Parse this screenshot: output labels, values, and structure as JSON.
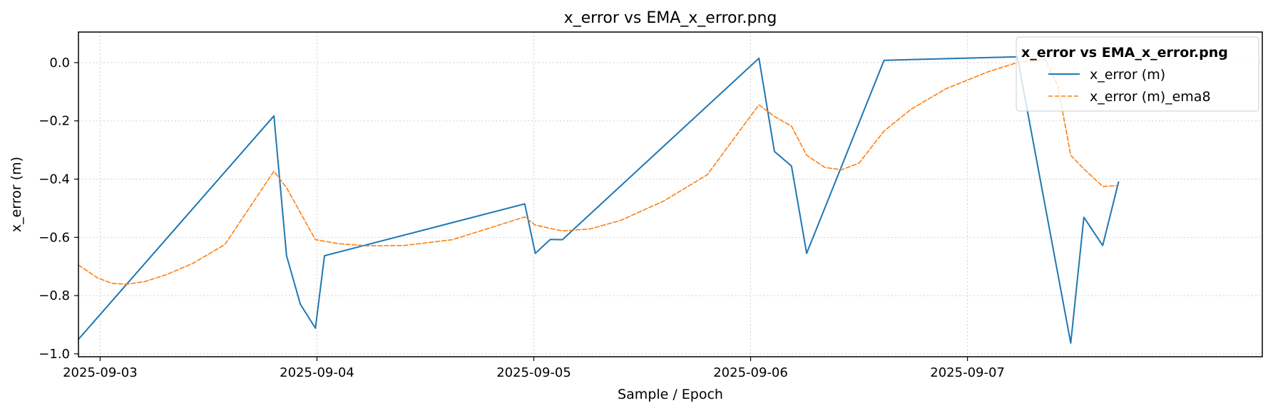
{
  "chart_data": {
    "type": "line",
    "title": "x_error vs EMA_x_error.png",
    "xlabel": "Sample / Epoch",
    "ylabel": "x_error (m)",
    "xlim": [
      "2025-09-02T21:36",
      "2025-09-08T08:38"
    ],
    "ylim": [
      -1.01,
      0.105
    ],
    "x_ticks": [
      "2025-09-03",
      "2025-09-04",
      "2025-09-05",
      "2025-09-06",
      "2025-09-07"
    ],
    "y_ticks": [
      0.0,
      -0.2,
      -0.4,
      -0.6,
      -0.8,
      -1.0
    ],
    "y_tick_labels": [
      "0.0",
      "−0.2",
      "−0.4",
      "−0.6",
      "−0.8",
      "−1.0"
    ],
    "grid": true,
    "legend": {
      "title": "x_error vs EMA_x_error.png",
      "placement": "top-right"
    },
    "series": [
      {
        "name": "x_error (m)",
        "color": "#1f77b4",
        "style": "solid",
        "points": [
          [
            "2025-09-02T21:36",
            -0.95
          ],
          [
            "2025-09-03T19:14",
            -0.183
          ],
          [
            "2025-09-03T20:38",
            -0.663
          ],
          [
            "2025-09-03T22:10",
            -0.83
          ],
          [
            "2025-09-03T23:50",
            -0.912
          ],
          [
            "2025-09-04T00:50",
            -0.663
          ],
          [
            "2025-09-04T23:00",
            -0.485
          ],
          [
            "2025-09-05T00:10",
            -0.655
          ],
          [
            "2025-09-05T01:50",
            -0.607
          ],
          [
            "2025-09-05T03:10",
            -0.608
          ],
          [
            "2025-09-06T00:55",
            0.015
          ],
          [
            "2025-09-06T02:38",
            -0.305
          ],
          [
            "2025-09-06T04:31",
            -0.355
          ],
          [
            "2025-09-06T06:12",
            -0.655
          ],
          [
            "2025-09-06T14:46",
            0.008
          ],
          [
            "2025-09-07T05:31",
            0.02
          ],
          [
            "2025-09-07T11:26",
            -0.963
          ],
          [
            "2025-09-07T12:53",
            -0.531
          ],
          [
            "2025-09-07T14:58",
            -0.628
          ],
          [
            "2025-09-07T16:43",
            -0.41
          ]
        ]
      },
      {
        "name": "x_error (m)_ema8",
        "color": "#ff7f0e",
        "style": "dashed",
        "points": [
          [
            "2025-09-02T21:36",
            -0.695
          ],
          [
            "2025-09-02T23:46",
            -0.74
          ],
          [
            "2025-09-03T01:19",
            -0.758
          ],
          [
            "2025-09-03T02:55",
            -0.761
          ],
          [
            "2025-09-03T04:55",
            -0.752
          ],
          [
            "2025-09-03T07:20",
            -0.728
          ],
          [
            "2025-09-03T10:14",
            -0.69
          ],
          [
            "2025-09-03T13:48",
            -0.625
          ],
          [
            "2025-09-03T19:14",
            -0.373
          ],
          [
            "2025-09-03T20:38",
            -0.43
          ],
          [
            "2025-09-03T23:50",
            -0.608
          ],
          [
            "2025-09-04T02:24",
            -0.622
          ],
          [
            "2025-09-04T05:31",
            -0.629
          ],
          [
            "2025-09-04T09:36",
            -0.628
          ],
          [
            "2025-09-04T15:00",
            -0.608
          ],
          [
            "2025-09-04T23:00",
            -0.53
          ],
          [
            "2025-09-05T00:10",
            -0.558
          ],
          [
            "2025-09-05T03:10",
            -0.578
          ],
          [
            "2025-09-05T06:14",
            -0.571
          ],
          [
            "2025-09-05T09:36",
            -0.542
          ],
          [
            "2025-09-05T14:24",
            -0.475
          ],
          [
            "2025-09-05T19:12",
            -0.385
          ],
          [
            "2025-09-06T00:55",
            -0.145
          ],
          [
            "2025-09-06T02:38",
            -0.185
          ],
          [
            "2025-09-06T04:31",
            -0.218
          ],
          [
            "2025-09-06T06:12",
            -0.318
          ],
          [
            "2025-09-06T08:14",
            -0.36
          ],
          [
            "2025-09-06T10:05",
            -0.368
          ],
          [
            "2025-09-06T12:00",
            -0.345
          ],
          [
            "2025-09-06T14:46",
            -0.235
          ],
          [
            "2025-09-06T17:46",
            -0.16
          ],
          [
            "2025-09-06T21:36",
            -0.09
          ],
          [
            "2025-09-07T02:24",
            -0.03
          ],
          [
            "2025-09-07T05:31",
            0.0
          ],
          [
            "2025-09-07T08:38",
            0.01
          ],
          [
            "2025-09-07T10:00",
            -0.08
          ],
          [
            "2025-09-07T11:26",
            -0.318
          ],
          [
            "2025-09-07T12:53",
            -0.365
          ],
          [
            "2025-09-07T14:58",
            -0.425
          ],
          [
            "2025-09-07T16:43",
            -0.422
          ]
        ]
      }
    ]
  }
}
